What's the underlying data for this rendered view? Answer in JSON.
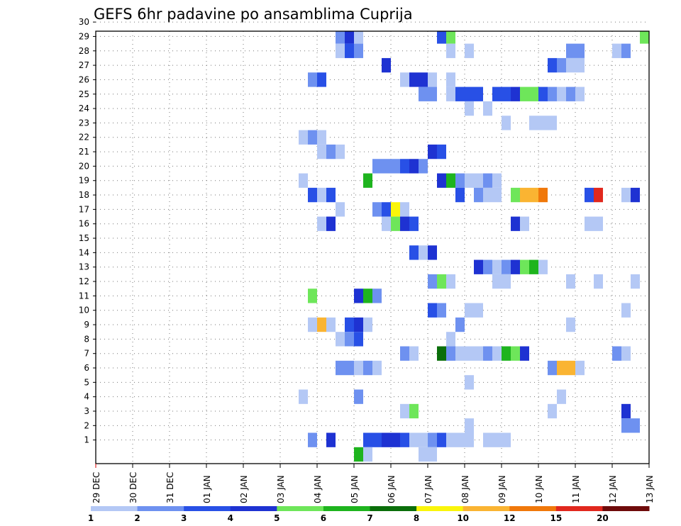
{
  "chart_data": {
    "type": "heatmap",
    "title": "GEFS 6hr padavine po ansamblima Cuprija",
    "y_ticks": [
      "1",
      "2",
      "3",
      "4",
      "5",
      "6",
      "7",
      "8",
      "9",
      "10",
      "11",
      "12",
      "13",
      "14",
      "15",
      "16",
      "17",
      "18",
      "19",
      "20",
      "21",
      "22",
      "23",
      "24",
      "25",
      "26",
      "27",
      "28",
      "29",
      "30"
    ],
    "x_ticks": [
      "29 DEC",
      "30 DEC",
      "31 DEC",
      "01 JAN",
      "02 JAN",
      "03 JAN",
      "04 JAN",
      "05 JAN",
      "06 JAN",
      "07 JAN",
      "08 JAN",
      "09 JAN",
      "10 JAN",
      "11 JAN",
      "12 JAN",
      "13 JAN"
    ],
    "x_range_steps": [
      0,
      60
    ],
    "steps_per_day": 4,
    "grid": true,
    "colorbar": {
      "labels": [
        "1",
        "2",
        "3",
        "4",
        "5",
        "6",
        "7",
        "8",
        "10",
        "12",
        "15",
        "20"
      ],
      "colors": [
        "#b4c8f5",
        "#6e91f0",
        "#2850e6",
        "#1e32d2",
        "#6ee65a",
        "#1eb41e",
        "#0a6e0a",
        "#faf50a",
        "#fab432",
        "#f0780a",
        "#e1281e",
        "#6e0a0a"
      ]
    },
    "cells": [
      {
        "m": 30,
        "s": [
          [
            22,
            6
          ],
          [
            23,
            3
          ],
          [
            28,
            5
          ],
          [
            29,
            4
          ],
          [
            30,
            3
          ],
          [
            31,
            9
          ],
          [
            32,
            3
          ],
          [
            36,
            3
          ],
          [
            37,
            1
          ],
          [
            38,
            1
          ],
          [
            43,
            3
          ],
          [
            44,
            9
          ],
          [
            45,
            8
          ],
          [
            46,
            3
          ],
          [
            47,
            3
          ]
        ]
      },
      {
        "m": 29,
        "s": [
          [
            26,
            2
          ],
          [
            27,
            4
          ],
          [
            28,
            1
          ],
          [
            37,
            3
          ],
          [
            38,
            5
          ],
          [
            59,
            5
          ]
        ]
      },
      {
        "m": 28,
        "s": [
          [
            26,
            1
          ],
          [
            27,
            3
          ],
          [
            28,
            2
          ],
          [
            38,
            1
          ],
          [
            40,
            1
          ],
          [
            51,
            2
          ],
          [
            52,
            2
          ],
          [
            56,
            1
          ],
          [
            57,
            2
          ]
        ]
      },
      {
        "m": 27,
        "s": [
          [
            31,
            4
          ],
          [
            49,
            3
          ],
          [
            50,
            2
          ],
          [
            51,
            1
          ],
          [
            52,
            1
          ]
        ]
      },
      {
        "m": 26,
        "s": [
          [
            23,
            2
          ],
          [
            24,
            3
          ],
          [
            33,
            1
          ],
          [
            34,
            4
          ],
          [
            35,
            4
          ],
          [
            36,
            1
          ],
          [
            38,
            1
          ]
        ]
      },
      {
        "m": 25,
        "s": [
          [
            35,
            2
          ],
          [
            36,
            2
          ],
          [
            38,
            1
          ],
          [
            39,
            3
          ],
          [
            40,
            3
          ],
          [
            41,
            3
          ],
          [
            43,
            3
          ],
          [
            44,
            3
          ],
          [
            45,
            4
          ],
          [
            46,
            5
          ],
          [
            47,
            5
          ],
          [
            48,
            3
          ],
          [
            49,
            2
          ],
          [
            50,
            1
          ],
          [
            51,
            2
          ],
          [
            52,
            1
          ]
        ]
      },
      {
        "m": 24,
        "s": [
          [
            40,
            1
          ],
          [
            42,
            1
          ]
        ]
      },
      {
        "m": 23,
        "s": [
          [
            44,
            1
          ],
          [
            47,
            1
          ],
          [
            48,
            1
          ],
          [
            49,
            1
          ]
        ]
      },
      {
        "m": 22,
        "s": [
          [
            22,
            1
          ],
          [
            23,
            2
          ],
          [
            24,
            1
          ]
        ]
      },
      {
        "m": 21,
        "s": [
          [
            24,
            1
          ],
          [
            25,
            2
          ],
          [
            26,
            1
          ],
          [
            36,
            4
          ],
          [
            37,
            3
          ]
        ]
      },
      {
        "m": 20,
        "s": [
          [
            30,
            2
          ],
          [
            31,
            2
          ],
          [
            32,
            2
          ],
          [
            33,
            3
          ],
          [
            34,
            4
          ],
          [
            35,
            2
          ]
        ]
      },
      {
        "m": 19,
        "s": [
          [
            22,
            1
          ],
          [
            29,
            6
          ],
          [
            37,
            4
          ],
          [
            38,
            6
          ],
          [
            39,
            2
          ],
          [
            40,
            1
          ],
          [
            41,
            1
          ],
          [
            42,
            2
          ],
          [
            43,
            1
          ]
        ]
      },
      {
        "m": 18,
        "s": [
          [
            23,
            3
          ],
          [
            24,
            1
          ],
          [
            25,
            3
          ],
          [
            39,
            3
          ],
          [
            41,
            2
          ],
          [
            42,
            1
          ],
          [
            43,
            1
          ],
          [
            45,
            5
          ],
          [
            46,
            9
          ],
          [
            47,
            9
          ],
          [
            48,
            10
          ],
          [
            53,
            3
          ],
          [
            54,
            11
          ],
          [
            57,
            1
          ],
          [
            58,
            4
          ]
        ]
      },
      {
        "m": 17,
        "s": [
          [
            26,
            1
          ],
          [
            30,
            2
          ],
          [
            31,
            3
          ],
          [
            32,
            8
          ],
          [
            33,
            1
          ]
        ]
      },
      {
        "m": 16,
        "s": [
          [
            24,
            1
          ],
          [
            25,
            4
          ],
          [
            31,
            1
          ],
          [
            32,
            5
          ],
          [
            33,
            4
          ],
          [
            34,
            3
          ],
          [
            45,
            4
          ],
          [
            46,
            1
          ],
          [
            53,
            1
          ],
          [
            54,
            1
          ]
        ]
      },
      {
        "m": 14,
        "s": [
          [
            34,
            3
          ],
          [
            35,
            1
          ],
          [
            36,
            4
          ]
        ]
      },
      {
        "m": 13,
        "s": [
          [
            41,
            4
          ],
          [
            42,
            2
          ],
          [
            43,
            1
          ],
          [
            44,
            2
          ],
          [
            45,
            4
          ],
          [
            46,
            5
          ],
          [
            47,
            6
          ],
          [
            48,
            1
          ]
        ]
      },
      {
        "m": 12,
        "s": [
          [
            36,
            2
          ],
          [
            37,
            5
          ],
          [
            38,
            1
          ],
          [
            43,
            1
          ],
          [
            44,
            1
          ],
          [
            51,
            1
          ],
          [
            54,
            1
          ],
          [
            58,
            1
          ],
          [
            60,
            1
          ]
        ]
      },
      {
        "m": 11,
        "s": [
          [
            23,
            5
          ],
          [
            28,
            4
          ],
          [
            29,
            6
          ],
          [
            30,
            2
          ]
        ]
      },
      {
        "m": 10,
        "s": [
          [
            36,
            3
          ],
          [
            37,
            2
          ],
          [
            40,
            1
          ],
          [
            41,
            1
          ],
          [
            57,
            1
          ],
          [
            60,
            2
          ]
        ]
      },
      {
        "m": 9,
        "s": [
          [
            23,
            1
          ],
          [
            24,
            9
          ],
          [
            25,
            1
          ],
          [
            27,
            3
          ],
          [
            28,
            4
          ],
          [
            29,
            1
          ],
          [
            39,
            2
          ],
          [
            51,
            1
          ]
        ]
      },
      {
        "m": 8,
        "s": [
          [
            26,
            1
          ],
          [
            27,
            2
          ],
          [
            28,
            3
          ],
          [
            38,
            1
          ]
        ]
      },
      {
        "m": 7,
        "s": [
          [
            33,
            2
          ],
          [
            34,
            1
          ],
          [
            37,
            7
          ],
          [
            38,
            2
          ],
          [
            39,
            1
          ],
          [
            40,
            1
          ],
          [
            41,
            1
          ],
          [
            42,
            2
          ],
          [
            43,
            1
          ],
          [
            44,
            6
          ],
          [
            45,
            5
          ],
          [
            46,
            4
          ],
          [
            56,
            2
          ],
          [
            57,
            1
          ]
        ]
      },
      {
        "m": 6,
        "s": [
          [
            26,
            2
          ],
          [
            27,
            2
          ],
          [
            28,
            1
          ],
          [
            29,
            2
          ],
          [
            30,
            1
          ],
          [
            49,
            2
          ],
          [
            50,
            9
          ],
          [
            51,
            9
          ],
          [
            52,
            1
          ]
        ]
      },
      {
        "m": 5,
        "s": [
          [
            40,
            1
          ]
        ]
      },
      {
        "m": 4,
        "s": [
          [
            22,
            1
          ],
          [
            28,
            2
          ],
          [
            50,
            1
          ]
        ]
      },
      {
        "m": 3,
        "s": [
          [
            33,
            1
          ],
          [
            34,
            5
          ],
          [
            49,
            1
          ],
          [
            57,
            4
          ]
        ]
      },
      {
        "m": 2,
        "s": [
          [
            40,
            1
          ],
          [
            57,
            2
          ],
          [
            58,
            2
          ]
        ]
      },
      {
        "m": 1,
        "s": [
          [
            23,
            2
          ],
          [
            25,
            4
          ],
          [
            29,
            3
          ],
          [
            30,
            3
          ],
          [
            31,
            4
          ],
          [
            32,
            4
          ],
          [
            33,
            3
          ],
          [
            34,
            1
          ],
          [
            35,
            1
          ],
          [
            36,
            2
          ],
          [
            37,
            3
          ],
          [
            38,
            1
          ],
          [
            39,
            1
          ],
          [
            40,
            1
          ],
          [
            42,
            1
          ],
          [
            43,
            1
          ],
          [
            44,
            1
          ]
        ]
      },
      {
        "m": 0,
        "s": [
          [
            28,
            6
          ],
          [
            29,
            1
          ],
          [
            35,
            1
          ],
          [
            36,
            1
          ]
        ]
      }
    ]
  }
}
